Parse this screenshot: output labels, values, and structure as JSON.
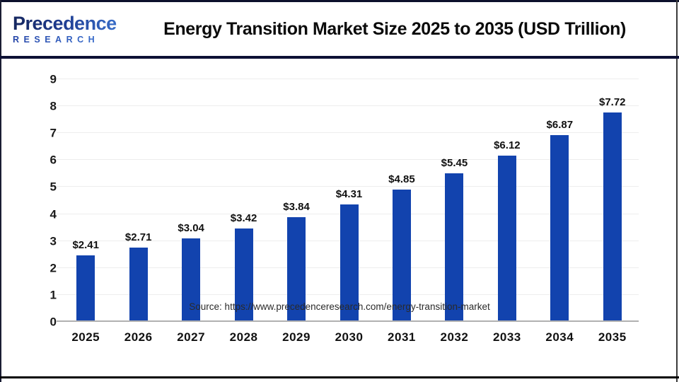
{
  "header": {
    "logo": {
      "line1": "Precedence",
      "line2": "RESEARCH"
    },
    "title": "Energy Transition Market Size 2025 to 2035 (USD Trillion)"
  },
  "chart_data": {
    "type": "bar",
    "title": "Energy Transition Market Size 2025 to 2035 (USD Trillion)",
    "categories": [
      "2025",
      "2026",
      "2027",
      "2028",
      "2029",
      "2030",
      "2031",
      "2032",
      "2033",
      "2034",
      "2035"
    ],
    "values": [
      2.41,
      2.71,
      3.04,
      3.42,
      3.84,
      4.31,
      4.85,
      5.45,
      6.12,
      6.87,
      7.72
    ],
    "value_labels": [
      "$2.41",
      "$2.71",
      "$3.04",
      "$3.42",
      "$3.84",
      "$4.31",
      "$4.85",
      "$5.45",
      "$6.12",
      "$6.87",
      "$7.72"
    ],
    "xlabel": "",
    "ylabel": "",
    "ylim": [
      0,
      9
    ],
    "yticks": [
      0,
      1,
      2,
      3,
      4,
      5,
      6,
      7,
      8,
      9
    ],
    "grid": true,
    "legend": false,
    "bar_color": "#1243ae"
  },
  "footer": {
    "source": "Source: https://www.precedenceresearch.com/energy-transition-market"
  },
  "colors": {
    "accent_bar": "#1243ae",
    "separator_navy": "#0d1135",
    "axis_gray": "#b1b1b1",
    "grid_gray": "#ededed"
  }
}
